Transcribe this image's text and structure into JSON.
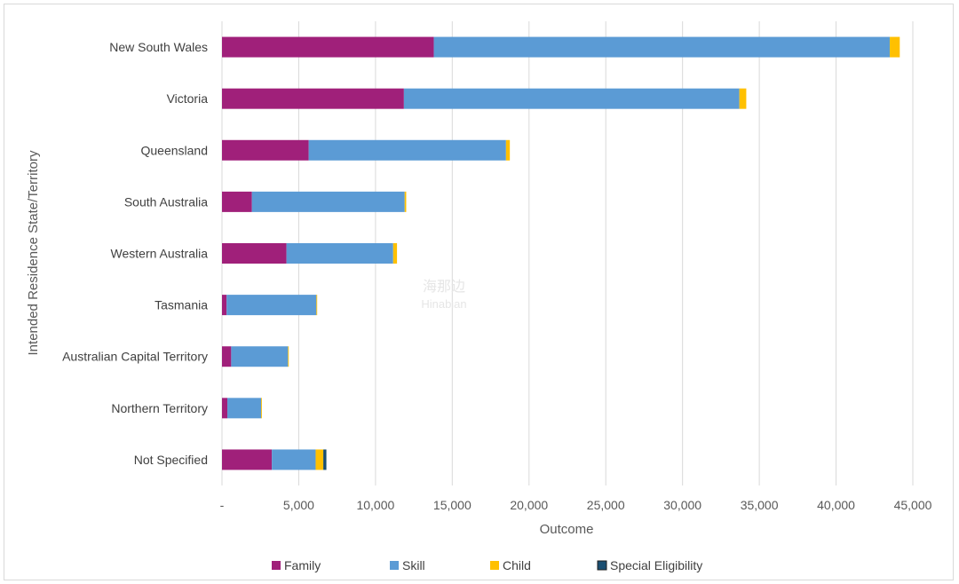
{
  "chart_data": {
    "type": "bar",
    "orientation": "horizontal",
    "stacked": true,
    "categories": [
      "New South Wales",
      "Victoria",
      "Queensland",
      "South Australia",
      "Western Australia",
      "Tasmania",
      "Australian Capital Territory",
      "Northern Territory",
      "Not Specified"
    ],
    "series": [
      {
        "name": "Family",
        "color": "#a0207a",
        "values": [
          13800,
          11850,
          5650,
          1950,
          4200,
          300,
          600,
          350,
          3250
        ]
      },
      {
        "name": "Skill",
        "color": "#5b9bd5",
        "values": [
          29700,
          21850,
          12850,
          9950,
          6950,
          5850,
          3700,
          2200,
          2850
        ]
      },
      {
        "name": "Child",
        "color": "#ffc000",
        "values": [
          650,
          450,
          250,
          100,
          250,
          50,
          50,
          50,
          500
        ]
      },
      {
        "name": "Special Eligibility",
        "color": "#1b4f72",
        "values": [
          0,
          0,
          0,
          0,
          0,
          0,
          0,
          0,
          200
        ]
      }
    ],
    "xlim": [
      0,
      45000
    ],
    "xticks": [
      0,
      5000,
      10000,
      15000,
      20000,
      25000,
      30000,
      35000,
      40000,
      45000
    ],
    "xtick_labels": [
      "-",
      "5,000",
      "10,000",
      "15,000",
      "20,000",
      "25,000",
      "30,000",
      "35,000",
      "40,000",
      "45,000"
    ],
    "xlabel": "Outcome",
    "ylabel": "Intended Residence State/Territory",
    "grid": "vertical",
    "legend_position": "bottom"
  },
  "watermark": {
    "line1": "海那边",
    "line2": "Hinabian"
  }
}
